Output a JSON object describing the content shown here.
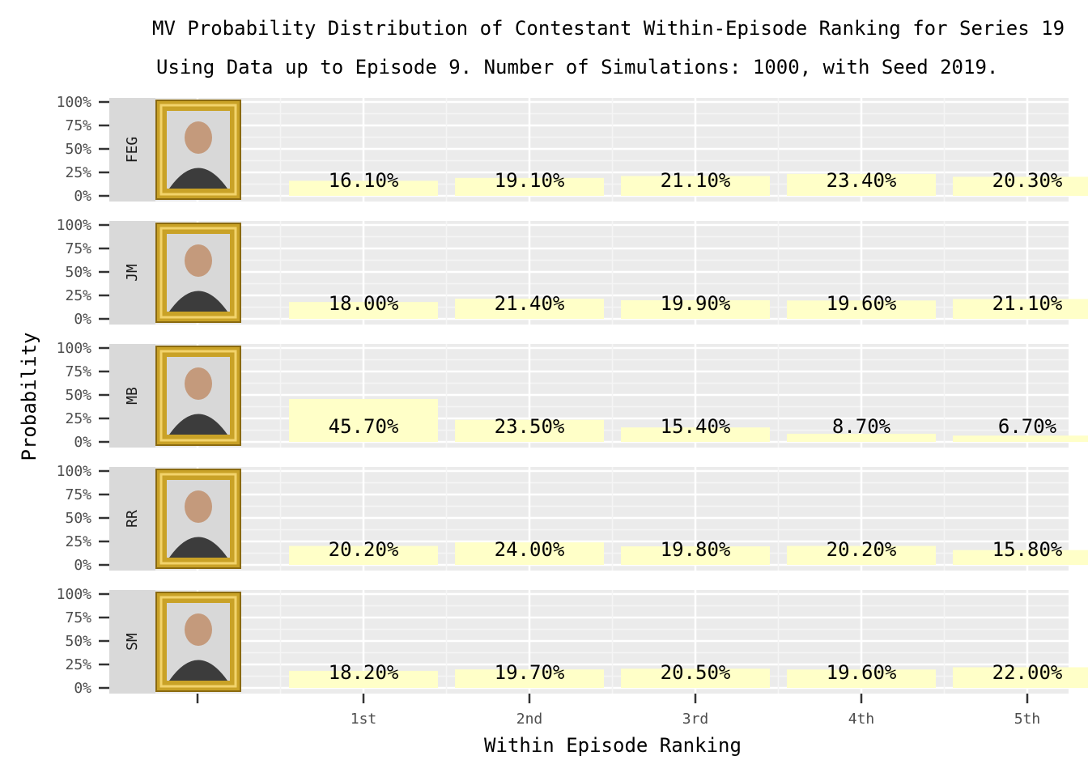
{
  "chart_data": {
    "type": "bar",
    "title": "MV Probability Distribution of Contestant Within-Episode Ranking for Series 19",
    "subtitle": "Using Data up to Episode 9. Number of Simulations: 1000, with Seed 2019.",
    "xlabel": "Within Episode Ranking",
    "ylabel": "Probability",
    "categories": [
      "1st",
      "2nd",
      "3rd",
      "4th",
      "5th"
    ],
    "y_ticks": [
      "100%",
      "75%",
      "50%",
      "25%",
      "0%"
    ],
    "ylim": [
      0,
      1
    ],
    "grid": true,
    "legend": "none",
    "bar_color": "#ffffc8",
    "panel_bg": "#ebebeb",
    "strip_bg": "#d9d9d9",
    "frame_color": "#c9a227",
    "series": [
      {
        "name": "FEG",
        "values": [
          0.161,
          0.191,
          0.211,
          0.234,
          0.203
        ],
        "labels": [
          "16.10%",
          "19.10%",
          "21.10%",
          "23.40%",
          "20.30%"
        ]
      },
      {
        "name": "JM",
        "values": [
          0.18,
          0.214,
          0.199,
          0.196,
          0.211
        ],
        "labels": [
          "18.00%",
          "21.40%",
          "19.90%",
          "19.60%",
          "21.10%"
        ]
      },
      {
        "name": "MB",
        "values": [
          0.457,
          0.235,
          0.154,
          0.087,
          0.067
        ],
        "labels": [
          "45.70%",
          "23.50%",
          "15.40%",
          "8.70%",
          "6.70%"
        ]
      },
      {
        "name": "RR",
        "values": [
          0.202,
          0.24,
          0.198,
          0.202,
          0.158
        ],
        "labels": [
          "20.20%",
          "24.00%",
          "19.80%",
          "20.20%",
          "15.80%"
        ]
      },
      {
        "name": "SM",
        "values": [
          0.182,
          0.197,
          0.205,
          0.196,
          0.22
        ],
        "labels": [
          "18.20%",
          "19.70%",
          "20.50%",
          "19.60%",
          "22.00%"
        ]
      }
    ]
  }
}
